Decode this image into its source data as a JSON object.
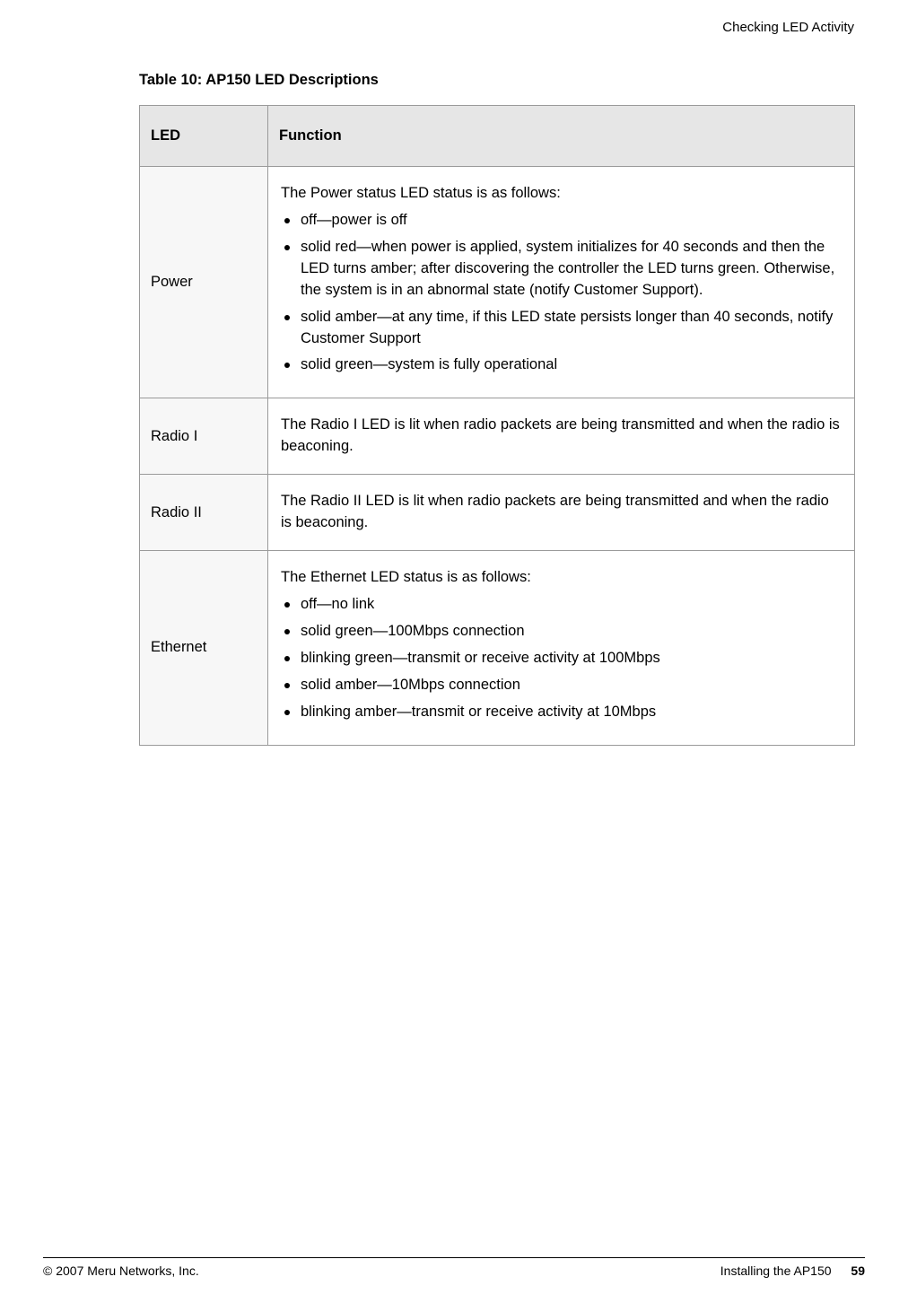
{
  "header": {
    "section_title": "Checking LED Activity"
  },
  "table": {
    "title": "Table 10: AP150 LED Descriptions",
    "columns": [
      "LED",
      "Function"
    ],
    "header_bg": "#e6e6e6",
    "led_cell_bg": "#f7f7f7",
    "border_color": "#9a9a9a",
    "rows": [
      {
        "led": "Power",
        "intro": "The Power status LED status is as follows:",
        "items": [
          "off—power is off",
          "solid red—when power is applied, system initializes for 40 seconds and then the LED turns amber; after discovering the controller the LED turns green. Otherwise, the system is in an abnormal state (notify Customer Support).",
          "solid amber—at any time, if this LED state persists longer than 40 seconds, notify Customer Support",
          "solid green—system is fully operational"
        ]
      },
      {
        "led": "Radio I",
        "intro": "The Radio I LED is lit when radio packets are being transmitted and when the radio is beaconing.",
        "items": []
      },
      {
        "led": "Radio II",
        "intro": "The Radio II LED is lit when radio packets are being transmitted and when the radio is beaconing.",
        "items": []
      },
      {
        "led": "Ethernet",
        "intro": "The Ethernet LED status is as follows:",
        "items": [
          "off—no link",
          "solid green—100Mbps connection",
          "blinking green—transmit or receive activity at 100Mbps",
          "solid amber—10Mbps connection",
          "blinking amber—transmit or receive activity at 10Mbps"
        ]
      }
    ]
  },
  "footer": {
    "copyright": "© 2007 Meru Networks, Inc.",
    "chapter": "Installing the AP150",
    "page": "59"
  }
}
